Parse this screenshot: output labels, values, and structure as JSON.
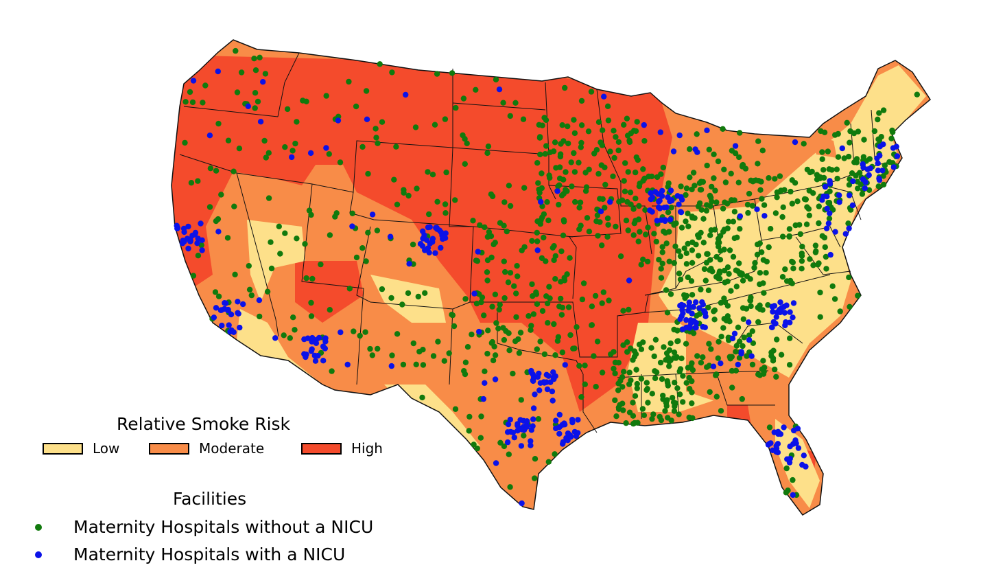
{
  "map": {
    "description_colors": {
      "low": "#fde08a",
      "moderate": "#f88c48",
      "high": "#f44b2c",
      "state_border": "#111111"
    }
  },
  "legend_risk": {
    "title": "Relative Smoke Risk",
    "items": [
      {
        "key": "low",
        "label": "Low",
        "color": "#fde08a"
      },
      {
        "key": "moderate",
        "label": "Moderate",
        "color": "#f88c48"
      },
      {
        "key": "high",
        "label": "High",
        "color": "#f44b2c"
      }
    ]
  },
  "legend_facilities": {
    "title": "Facilities",
    "items": [
      {
        "key": "no_nicu",
        "label": "Maternity Hospitals without a NICU",
        "color": "#117a0d"
      },
      {
        "key": "nicu",
        "label": "Maternity Hospitals with a NICU",
        "color": "#0b12e8"
      }
    ]
  }
}
